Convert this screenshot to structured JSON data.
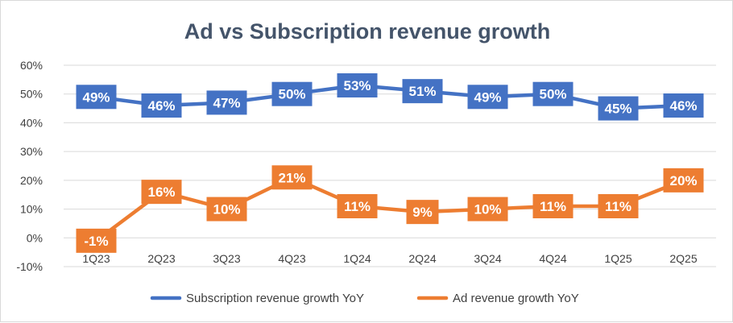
{
  "chart_data": {
    "type": "line",
    "title": "Ad vs Subscription revenue growth",
    "xlabel": "",
    "ylabel": "",
    "categories": [
      "1Q23",
      "2Q23",
      "3Q23",
      "4Q23",
      "1Q24",
      "2Q24",
      "3Q24",
      "4Q24",
      "1Q25",
      "2Q25"
    ],
    "ylim": [
      -10,
      60
    ],
    "yticks": [
      -10,
      0,
      10,
      20,
      30,
      40,
      50,
      60
    ],
    "ytick_labels": [
      "-10%",
      "0%",
      "10%",
      "20%",
      "30%",
      "40%",
      "50%",
      "60%"
    ],
    "grid": true,
    "legend_position": "bottom",
    "series": [
      {
        "name": "Subscription revenue growth YoY",
        "color": "#4472c4",
        "values": [
          49,
          46,
          47,
          50,
          53,
          51,
          49,
          50,
          45,
          46
        ],
        "labels": [
          "49%",
          "46%",
          "47%",
          "50%",
          "53%",
          "51%",
          "49%",
          "50%",
          "45%",
          "46%"
        ]
      },
      {
        "name": "Ad revenue growth YoY",
        "color": "#ed7d31",
        "values": [
          -1,
          16,
          10,
          21,
          11,
          9,
          10,
          11,
          11,
          20
        ],
        "labels": [
          "-1%",
          "16%",
          "10%",
          "21%",
          "11%",
          "9%",
          "10%",
          "11%",
          "11%",
          "20%"
        ]
      }
    ]
  }
}
